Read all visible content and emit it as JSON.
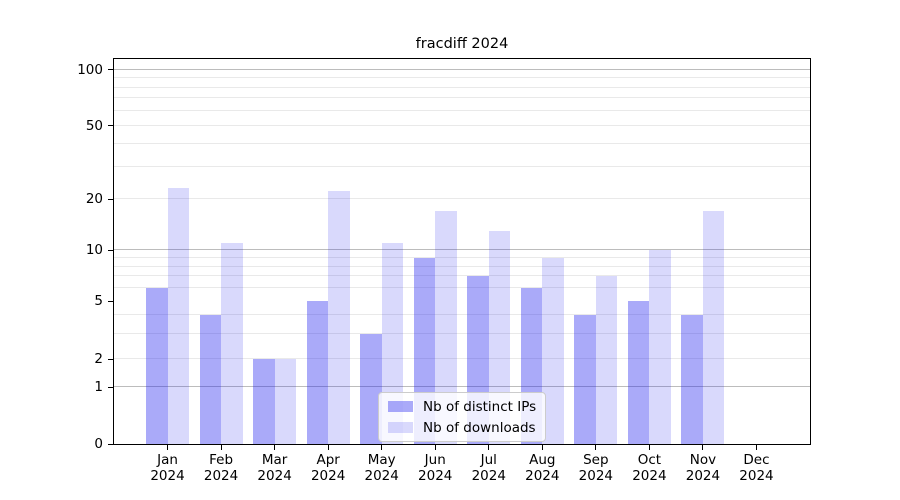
{
  "chart_data": {
    "type": "bar",
    "title": "fracdiff 2024",
    "categories": [
      "Jan 2024",
      "Feb 2024",
      "Mar 2024",
      "Apr 2024",
      "May 2024",
      "Jun 2024",
      "Jul 2024",
      "Aug 2024",
      "Sep 2024",
      "Oct 2024",
      "Nov 2024",
      "Dec 2024"
    ],
    "x_tick_months": [
      "Jan",
      "Feb",
      "Mar",
      "Apr",
      "May",
      "Jun",
      "Jul",
      "Aug",
      "Sep",
      "Oct",
      "Nov",
      "Dec"
    ],
    "x_tick_year": "2024",
    "series": [
      {
        "name": "Nb of distinct IPs",
        "color": "rgba(32,32,240,0.38)",
        "values": [
          6,
          4,
          2,
          5,
          3,
          9,
          7,
          6,
          4,
          5,
          4,
          0
        ]
      },
      {
        "name": "Nb of downloads",
        "color": "rgba(32,32,240,0.17)",
        "values": [
          23,
          11,
          2,
          22,
          11,
          17,
          13,
          9,
          7,
          10,
          17,
          0
        ]
      }
    ],
    "yaxis": {
      "scale": "log-like",
      "tick_labels": [
        "0",
        "1",
        "2",
        "5",
        "10",
        "20",
        "50",
        "100"
      ],
      "tick_values": [
        0,
        1,
        2,
        5,
        10,
        20,
        50,
        100
      ],
      "major_grid_values": [
        1,
        10,
        100
      ],
      "minor_grid_values": [
        2,
        3,
        4,
        6,
        7,
        8,
        9,
        20,
        30,
        40,
        50,
        60,
        70,
        80,
        90
      ],
      "ylim": [
        0,
        110
      ]
    },
    "legend": {
      "position": "lower-center",
      "entries": [
        "Nb of distinct IPs",
        "Nb of downloads"
      ]
    },
    "grid": true,
    "colors": {
      "major_grid": "#bcbcbc",
      "minor_grid": "#e9e9e9",
      "spine": "#000000",
      "text": "#000000",
      "background": "#ffffff"
    }
  }
}
